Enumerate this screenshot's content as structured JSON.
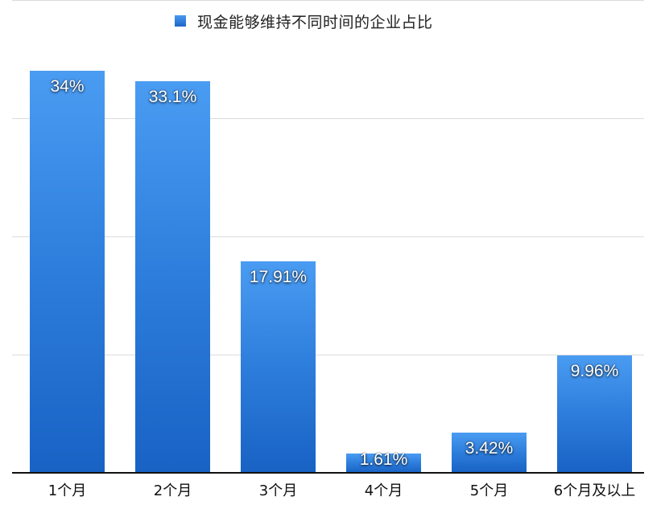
{
  "chart_data": {
    "type": "bar",
    "title": "",
    "legend": [
      "现金能够维持不同时间的企业占比"
    ],
    "legend_position": "top",
    "categories": [
      "1个月",
      "2个月",
      "3个月",
      "4个月",
      "5个月",
      "6个月及以上"
    ],
    "series": [
      {
        "name": "现金能够维持不同时间的企业占比",
        "values": [
          34,
          33.1,
          17.91,
          1.61,
          3.42,
          9.96
        ],
        "color": "#2d7ddc"
      }
    ],
    "data_labels": [
      "34%",
      "33.1%",
      "17.91%",
      "1.61%",
      "3.42%",
      "9.96%"
    ],
    "xlabel": "",
    "ylabel": "",
    "ylim": [
      0,
      40
    ],
    "grid": true,
    "y_tick_labels_visible": false
  },
  "legend": {
    "label": "现金能够维持不同时间的企业占比"
  }
}
